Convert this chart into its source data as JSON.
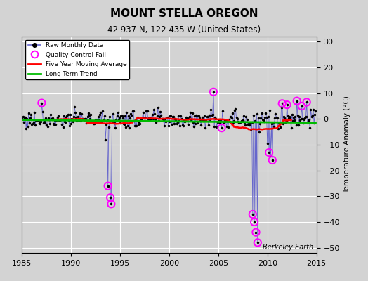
{
  "title": "MOUNT STELLA OREGON",
  "subtitle": "42.937 N, 122.435 W (United States)",
  "ylabel": "Temperature Anomaly (°C)",
  "xlabel_bottom": "Berkeley Earth",
  "xlim": [
    1985,
    2015
  ],
  "ylim": [
    -52,
    32
  ],
  "yticks": [
    -50,
    -40,
    -30,
    -20,
    -10,
    0,
    10,
    20,
    30
  ],
  "xticks": [
    1985,
    1990,
    1995,
    2000,
    2005,
    2010,
    2015
  ],
  "bg_color": "#d3d3d3",
  "grid_color": "#ffffff",
  "raw_color": "#6666cc",
  "raw_dot_color": "#000000",
  "qc_color": "#ff00ff",
  "moving_avg_color": "#ff0000",
  "trend_color": "#00bb00",
  "raw_monthly_label": "Raw Monthly Data",
  "qc_label": "Quality Control Fail",
  "moving_avg_label": "Five Year Moving Average",
  "trend_label": "Long-Term Trend"
}
